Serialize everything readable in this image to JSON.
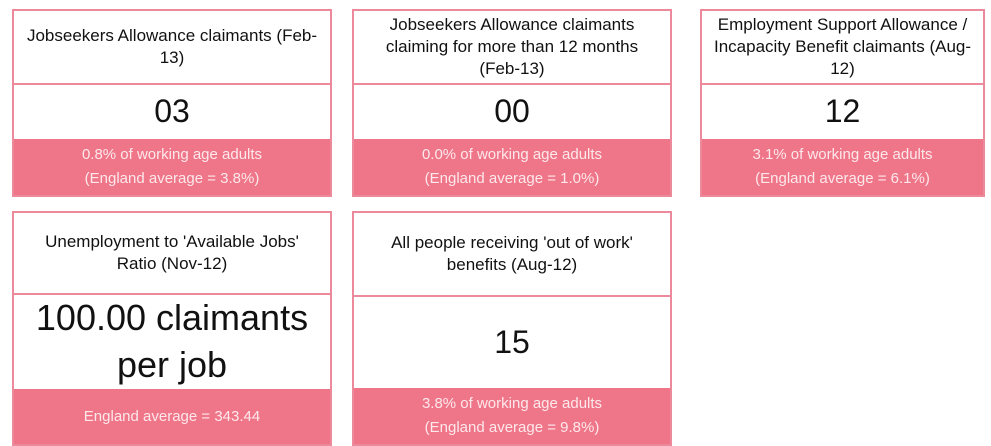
{
  "cards": [
    {
      "title": "Jobseekers Allowance claimants (Feb-13)",
      "value": "03",
      "footer": [
        "0.8% of working age adults",
        "(England average = 3.8%)"
      ]
    },
    {
      "title": "Jobseekers Allowance claimants claiming for more than 12 months (Feb-13)",
      "value": "00",
      "footer": [
        "0.0% of working age adults",
        "(England average = 1.0%)"
      ]
    },
    {
      "title": "Employment Support Allowance / Incapacity Benefit claimants (Aug-12)",
      "value": "12",
      "footer": [
        "3.1% of working age adults",
        "(England average = 6.1%)"
      ]
    },
    {
      "title": "Unemployment to 'Available Jobs' Ratio (Nov-12)",
      "value": "100.00 claimants per job",
      "footer": [
        "England average = 343.44"
      ]
    },
    {
      "title": "All people receiving 'out of work' benefits (Aug-12)",
      "value": "15",
      "footer": [
        "3.8% of working age adults",
        "(England average = 9.8%)"
      ]
    }
  ]
}
